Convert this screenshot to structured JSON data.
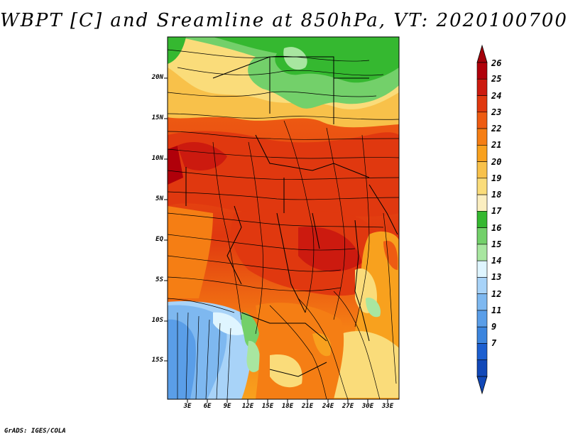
{
  "title": "WBPT [C] and Sreamline at 850hPa, VT: 2020100700",
  "footer": "GrADS: IGES/COLA",
  "map": {
    "variable": "WBPT [C]",
    "level": "850hPa",
    "valid_time": "2020100700",
    "lat_labels": [
      "20N",
      "15N",
      "10N",
      "5N",
      "EQ",
      "5S",
      "10S",
      "15S"
    ],
    "lon_labels": [
      "3E",
      "6E",
      "9E",
      "12E",
      "15E",
      "18E",
      "21E",
      "24E",
      "27E",
      "30E",
      "33E"
    ]
  },
  "colorbar": {
    "labels": [
      "26",
      "25",
      "24",
      "23",
      "22",
      "21",
      "20",
      "19",
      "18",
      "17",
      "16",
      "15",
      "14",
      "13",
      "12",
      "11",
      "9",
      "7"
    ],
    "colors": [
      "#b0000a",
      "#cc1a0f",
      "#e0380f",
      "#ee5b12",
      "#f57e14",
      "#f8a11e",
      "#f8c14a",
      "#fadc7a",
      "#fbeec0",
      "#35b830",
      "#73d06a",
      "#a8e6a0",
      "#dff5ff",
      "#a8d3f8",
      "#7eb8f0",
      "#5a9ee8",
      "#3c85de",
      "#1c5fd0",
      "#1148b8"
    ],
    "top_arrow_color": "#a3000a",
    "bottom_arrow_color": "#1148b8"
  }
}
